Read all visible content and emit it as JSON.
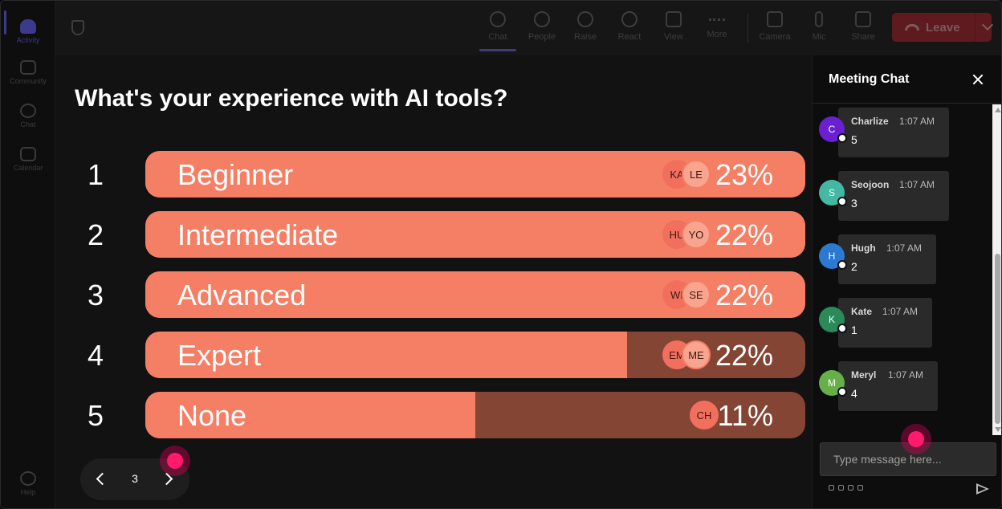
{
  "rail": {
    "items": [
      {
        "label": "Activity",
        "icon": "bell-icon",
        "active": true
      },
      {
        "label": "Community",
        "icon": "community-icon"
      },
      {
        "label": "Chat",
        "icon": "chat-icon"
      },
      {
        "label": "Calendar",
        "icon": "calendar-icon"
      },
      {
        "label": "Help",
        "icon": "help-icon"
      }
    ]
  },
  "toolbar": {
    "buttons": [
      {
        "label": "Chat",
        "icon": "chat-bubble-icon",
        "active": true
      },
      {
        "label": "People",
        "icon": "people-icon"
      },
      {
        "label": "Raise",
        "icon": "raise-hand-icon"
      },
      {
        "label": "React",
        "icon": "smile-icon"
      },
      {
        "label": "View",
        "icon": "grid-view-icon"
      },
      {
        "label": "More",
        "icon": "more-dots-icon"
      },
      {
        "label": "Camera",
        "icon": "camera-off-icon"
      },
      {
        "label": "Mic",
        "icon": "mic-icon"
      },
      {
        "label": "Share",
        "icon": "share-screen-icon"
      }
    ],
    "leave_label": "Leave"
  },
  "poll": {
    "question": "What's your experience with AI tools?",
    "options": [
      {
        "number": "1",
        "label": "Beginner",
        "percent": "23%",
        "fill": 100,
        "avatars": [
          "KA",
          "LE"
        ]
      },
      {
        "number": "2",
        "label": "Intermediate",
        "percent": "22%",
        "fill": 100,
        "avatars": [
          "HU",
          "YO"
        ]
      },
      {
        "number": "3",
        "label": "Advanced",
        "percent": "22%",
        "fill": 100,
        "avatars": [
          "WI",
          "SE"
        ]
      },
      {
        "number": "4",
        "label": "Expert",
        "percent": "22%",
        "fill": 73,
        "avatars": [
          "EM",
          "ME"
        ]
      },
      {
        "number": "5",
        "label": "None",
        "percent": "11%",
        "fill": 50,
        "avatars": [
          "CH"
        ]
      }
    ],
    "colors": {
      "fill": "#f57f65",
      "track": "#854535"
    }
  },
  "pager": {
    "page": "3"
  },
  "chat": {
    "title": "Meeting Chat",
    "messages": [
      {
        "initial": "C",
        "name": "Charlize",
        "time": "1:07 AM",
        "text": "5",
        "color": "#6a1fd1"
      },
      {
        "initial": "S",
        "name": "Seojoon",
        "time": "1:07 AM",
        "text": "3",
        "color": "#43b8a2"
      },
      {
        "initial": "H",
        "name": "Hugh",
        "time": "1:07 AM",
        "text": "2",
        "color": "#2a7ad1"
      },
      {
        "initial": "K",
        "name": "Kate",
        "time": "1:07 AM",
        "text": "1",
        "color": "#2b8a5a"
      },
      {
        "initial": "M",
        "name": "Meryl",
        "time": "1:07 AM",
        "text": "4",
        "color": "#66b04a"
      }
    ],
    "input_placeholder": "Type message here..."
  }
}
